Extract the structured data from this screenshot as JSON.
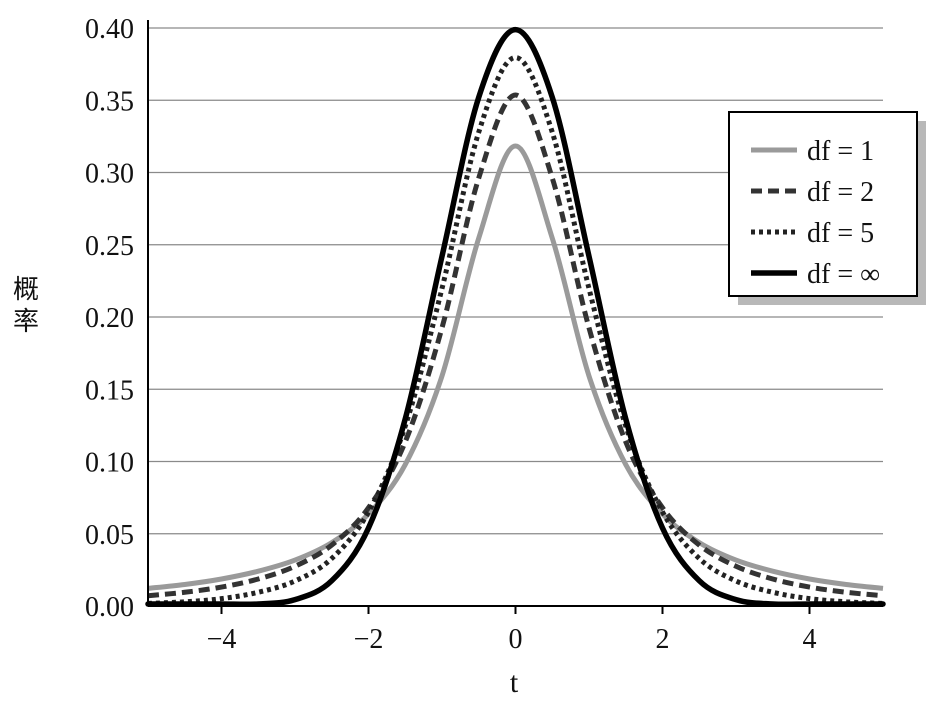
{
  "chart_data": {
    "type": "line",
    "title": "",
    "xlabel": "t",
    "ylabel": "概率",
    "xlim": [
      -5,
      5
    ],
    "ylim": [
      0,
      0.4
    ],
    "x_ticks": [
      -4,
      -2,
      0,
      2,
      4
    ],
    "x_tick_labels": [
      "−4",
      "−2",
      "0",
      "2",
      "4"
    ],
    "y_ticks": [
      0,
      0.05,
      0.1,
      0.15,
      0.2,
      0.25,
      0.3,
      0.35,
      0.4
    ],
    "y_tick_labels": [
      "0.00",
      "0.05",
      "0.10",
      "0.15",
      "0.20",
      "0.25",
      "0.30",
      "0.35",
      "0.40"
    ],
    "grid": "horizontal",
    "legend_position": "top-right",
    "series": [
      {
        "name": "df = 1",
        "style": "solid-light",
        "color": "#9a9a9a",
        "x": [
          -5,
          -4.5,
          -4,
          -3.5,
          -3,
          -2.5,
          -2,
          -1.5,
          -1,
          -0.5,
          0,
          0.5,
          1,
          1.5,
          2,
          2.5,
          3,
          3.5,
          4,
          4.5,
          5
        ],
        "values": [
          0.0122,
          0.0149,
          0.0187,
          0.0241,
          0.0318,
          0.0439,
          0.0637,
          0.0979,
          0.1592,
          0.2546,
          0.3183,
          0.2546,
          0.1592,
          0.0979,
          0.0637,
          0.0439,
          0.0318,
          0.0241,
          0.0187,
          0.0149,
          0.0122
        ]
      },
      {
        "name": "df = 2",
        "style": "dashed",
        "color": "#333333",
        "x": [
          -5,
          -4.5,
          -4,
          -3.5,
          -3,
          -2.5,
          -2,
          -1.5,
          -1,
          -0.5,
          0,
          0.5,
          1,
          1.5,
          2,
          2.5,
          3,
          3.5,
          4,
          4.5,
          5
        ],
        "values": [
          0.0071,
          0.0095,
          0.0131,
          0.0187,
          0.0275,
          0.0422,
          0.068,
          0.1136,
          0.1925,
          0.2962,
          0.3536,
          0.2962,
          0.1925,
          0.1136,
          0.068,
          0.0422,
          0.0275,
          0.0187,
          0.0131,
          0.0095,
          0.0071
        ]
      },
      {
        "name": "df = 5",
        "style": "dotted",
        "color": "#222222",
        "x": [
          -5,
          -4.5,
          -4,
          -3.5,
          -3,
          -2.5,
          -2,
          -1.5,
          -1,
          -0.5,
          0,
          0.5,
          1,
          1.5,
          2,
          2.5,
          3,
          3.5,
          4,
          4.5,
          5
        ],
        "values": [
          0.0018,
          0.0029,
          0.0051,
          0.0095,
          0.0173,
          0.0329,
          0.0651,
          0.1245,
          0.2197,
          0.3279,
          0.3796,
          0.3279,
          0.2197,
          0.1245,
          0.0651,
          0.0329,
          0.0173,
          0.0095,
          0.0051,
          0.0029,
          0.0018
        ]
      },
      {
        "name": "df = ∞",
        "style": "solid-bold",
        "color": "#000000",
        "x": [
          -5,
          -4.5,
          -4,
          -3.5,
          -3,
          -2.5,
          -2,
          -1.5,
          -1,
          -0.5,
          0,
          0.5,
          1,
          1.5,
          2,
          2.5,
          3,
          3.5,
          4,
          4.5,
          5
        ],
        "values": [
          0.0,
          0.0,
          0.0001,
          0.0009,
          0.0044,
          0.0175,
          0.054,
          0.1295,
          0.242,
          0.3521,
          0.3989,
          0.3521,
          0.242,
          0.1295,
          0.054,
          0.0175,
          0.0044,
          0.0009,
          0.0001,
          0.0,
          0.0
        ]
      }
    ]
  }
}
